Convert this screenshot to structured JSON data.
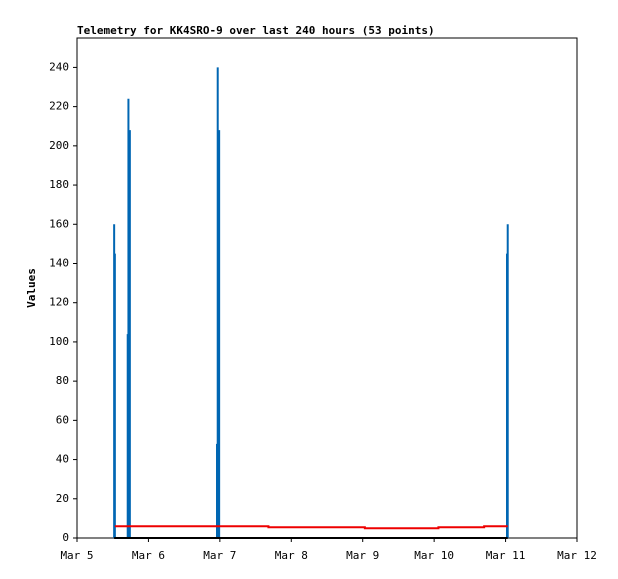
{
  "chart_data": {
    "type": "mixed",
    "title": "Telemetry for KK4SRO-9 over last 240 hours (53 points)",
    "y_label": "Values",
    "xlim": [
      5,
      12
    ],
    "xticks": [
      {
        "value": 5,
        "label": "Mar 5"
      },
      {
        "value": 6,
        "label": "Mar 6"
      },
      {
        "value": 7,
        "label": "Mar 7"
      },
      {
        "value": 8,
        "label": "Mar 8"
      },
      {
        "value": 9,
        "label": "Mar 9"
      },
      {
        "value": 10,
        "label": "Mar 10"
      },
      {
        "value": 11,
        "label": "Mar 11"
      },
      {
        "value": 12,
        "label": "Mar 12"
      }
    ],
    "ylim": [
      0,
      255
    ],
    "yticks": [
      0,
      20,
      40,
      60,
      80,
      100,
      120,
      140,
      160,
      180,
      200,
      220,
      240
    ],
    "series": [
      {
        "type": "bar",
        "color": "#0066b3",
        "x": [
          5.52,
          5.53,
          5.71,
          5.72,
          5.74,
          6.96,
          6.97,
          6.99,
          11.02,
          11.03
        ],
        "values": [
          160,
          145,
          104,
          224,
          208,
          48,
          240,
          208,
          145,
          160
        ]
      },
      {
        "type": "line",
        "color": "#000000",
        "x": [
          5.52,
          11.03
        ],
        "values": [
          0,
          0
        ]
      },
      {
        "type": "line",
        "color": "#ee0000",
        "x": [
          5.53,
          7.68,
          7.68,
          9.03,
          9.03,
          10.06,
          10.06,
          10.7,
          10.7,
          11.03
        ],
        "values": [
          6,
          6,
          5.5,
          5.5,
          5,
          5,
          5.5,
          5.5,
          6,
          6
        ]
      }
    ]
  }
}
